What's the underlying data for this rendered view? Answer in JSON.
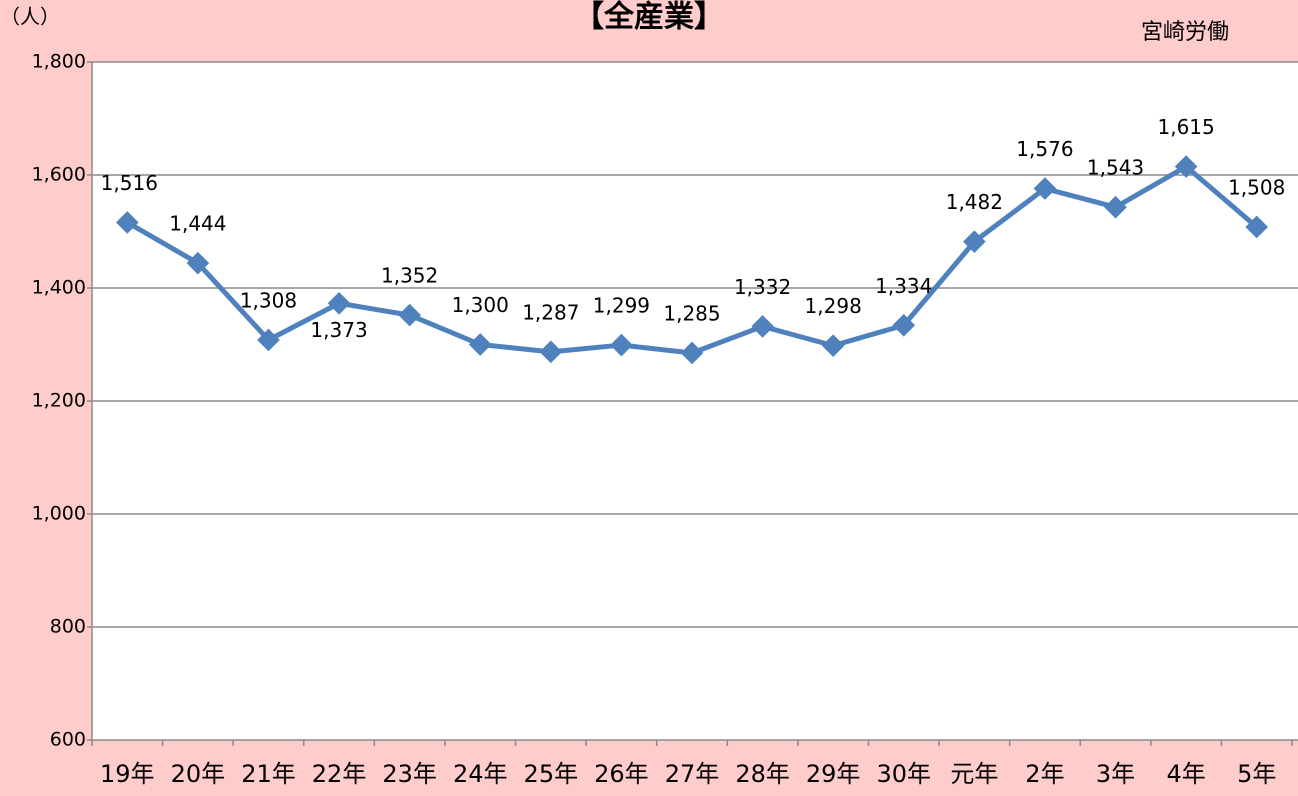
{
  "chart_data": {
    "type": "line",
    "title": "【全産業】",
    "y_unit": "（人）",
    "annotation": "宮崎労働",
    "categories": [
      "19年",
      "20年",
      "21年",
      "22年",
      "23年",
      "24年",
      "25年",
      "26年",
      "27年",
      "28年",
      "29年",
      "30年",
      "元年",
      "2年",
      "3年",
      "4年",
      "5年"
    ],
    "series": [
      {
        "name": "全産業",
        "color": "#4f81bd",
        "values": [
          1516,
          1444,
          1308,
          1373,
          1352,
          1300,
          1287,
          1299,
          1285,
          1332,
          1298,
          1334,
          1482,
          1576,
          1543,
          1615,
          1508
        ],
        "value_labels": [
          "1,516",
          "1,444",
          "1,308",
          "1,373",
          "1,352",
          "1,300",
          "1,287",
          "1,299",
          "1,285",
          "1,332",
          "1,298",
          "1,334",
          "1,482",
          "1,576",
          "1,543",
          "1,615",
          "1,508"
        ]
      }
    ],
    "ylim": [
      600,
      1800
    ],
    "yticks": [
      600,
      800,
      {
        "value": 1000,
        "label": "1,000"
      },
      {
        "value": 1200,
        "label": "1,200"
      },
      {
        "value": 1400,
        "label": "1,400"
      },
      {
        "value": 1600,
        "label": "1,600"
      },
      {
        "value": 1800,
        "label": "1,800"
      }
    ],
    "grid": true,
    "legend": false
  }
}
